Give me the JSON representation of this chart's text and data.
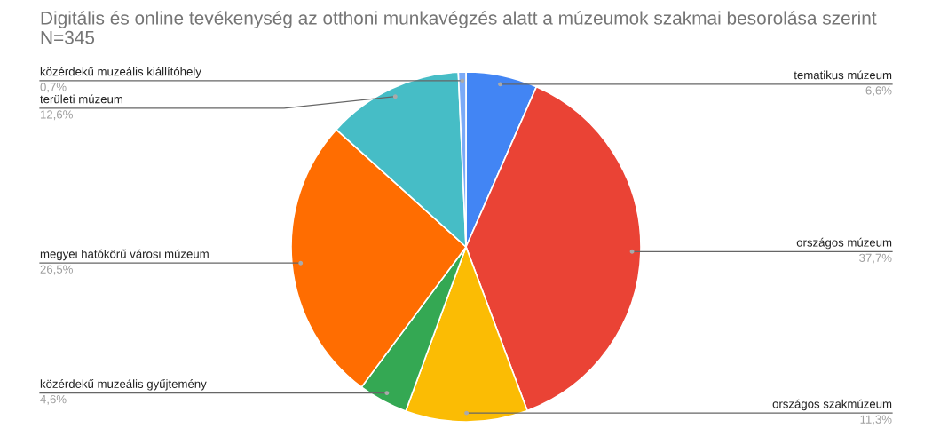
{
  "chart_data": {
    "type": "pie",
    "title": "Digitális és online tevékenység az otthoni munkavégzés alatt a múzeumok szakmai besorolása szerint",
    "subtitle": "N=345",
    "categories": [
      "tematikus múzeum",
      "országos múzeum",
      "országos szakmúzeum",
      "közérdekű muzeális gyűjtemény",
      "megyei hatókörű városi múzeum",
      "területi múzeum",
      "közérdekű muzeális kiállítóhely"
    ],
    "values": [
      6.6,
      37.7,
      11.3,
      4.6,
      26.5,
      12.6,
      0.7
    ],
    "value_labels": [
      "6,6%",
      "37,7%",
      "11,3%",
      "4,6%",
      "26,5%",
      "12,6%",
      "0,7%"
    ],
    "colors": [
      "#4285f4",
      "#ea4335",
      "#fbbc04",
      "#34a853",
      "#ff6d01",
      "#46bdc6",
      "#7baaf7"
    ]
  }
}
